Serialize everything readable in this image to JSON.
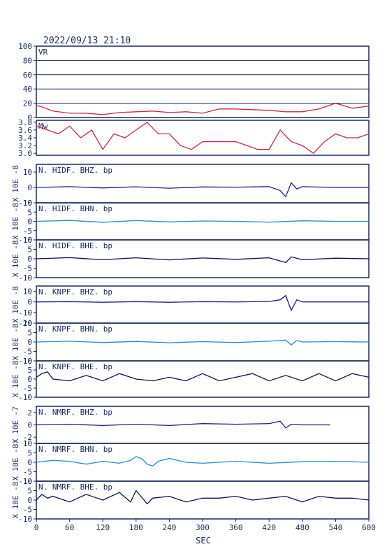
{
  "header": {
    "title": "2022/09/13 21:10"
  },
  "colors": {
    "frame": "#1a2a5a",
    "vr_line": "#d02050",
    "mw_line": "#d02050",
    "bhz": "#1c1c8c",
    "bhn": "#2a8ad0",
    "bhe": "#10104a",
    "grid": "#1a2a5a"
  },
  "xaxis": {
    "label": "SEC",
    "ticks": [
      "0",
      "60",
      "120",
      "180",
      "240",
      "300",
      "360",
      "420",
      "480",
      "540",
      "600"
    ]
  },
  "chart_data": [
    {
      "type": "line",
      "title": "VR",
      "ylim": [
        0,
        100
      ],
      "yticks": [
        "100",
        "80",
        "60",
        "40",
        "20",
        "0"
      ],
      "grid": true,
      "series": [
        {
          "x": [
            0,
            10,
            20,
            30,
            60,
            90,
            120,
            150,
            180,
            210,
            240,
            270,
            300,
            330,
            360,
            390,
            420,
            450,
            480,
            510,
            540,
            570,
            600
          ],
          "values": [
            17,
            15,
            12,
            9,
            6,
            6,
            4,
            7,
            8,
            9,
            7,
            8,
            6,
            12,
            12,
            11,
            10,
            8,
            8,
            12,
            20,
            13,
            16
          ]
        }
      ]
    },
    {
      "type": "line",
      "title": "Mw",
      "ylim": [
        2.95,
        3.85
      ],
      "yticks": [
        "3.8",
        "3.6",
        "3.4",
        "3.2",
        "3.0"
      ],
      "series": [
        {
          "x": [
            0,
            20,
            40,
            60,
            80,
            100,
            120,
            140,
            160,
            180,
            200,
            220,
            240,
            260,
            280,
            300,
            320,
            340,
            360,
            380,
            400,
            420,
            440,
            460,
            480,
            500,
            520,
            540,
            560,
            580,
            600
          ],
          "values": [
            3.7,
            3.6,
            3.5,
            3.7,
            3.4,
            3.6,
            3.1,
            3.5,
            3.4,
            3.6,
            3.8,
            3.5,
            3.5,
            3.2,
            3.1,
            3.3,
            3.3,
            3.3,
            3.3,
            3.2,
            3.1,
            3.1,
            3.6,
            3.3,
            3.2,
            3.0,
            3.3,
            3.5,
            3.4,
            3.4,
            3.5
          ]
        }
      ]
    },
    {
      "type": "line",
      "title": "N. HIDF. BHZ. bp",
      "ylabel": "X 10E -8",
      "ylim": [
        -10,
        15
      ],
      "yticks": [
        "10",
        "0",
        "-10"
      ],
      "series": [
        {
          "x": [
            0,
            60,
            120,
            180,
            240,
            300,
            360,
            420,
            440,
            450,
            460,
            470,
            480,
            540,
            600
          ],
          "values": [
            0,
            0.5,
            -0.3,
            0.4,
            -0.5,
            0.3,
            0.2,
            0.5,
            -2,
            -6,
            3,
            -1,
            0.5,
            0,
            0
          ]
        }
      ]
    },
    {
      "type": "line",
      "title": "N. HIDF. BHN. bp",
      "ylabel": "X 10E -8",
      "ylim": [
        -10,
        10
      ],
      "yticks": [
        "10",
        "5",
        "0",
        "-5",
        "-10"
      ],
      "series": [
        {
          "x": [
            0,
            60,
            120,
            180,
            240,
            300,
            360,
            420,
            480,
            540,
            600
          ],
          "values": [
            0,
            0.5,
            -0.5,
            0.4,
            -0.3,
            0.2,
            0,
            -0.4,
            0.3,
            0,
            0
          ]
        }
      ]
    },
    {
      "type": "line",
      "title": "N. HIDF. BHE. bp",
      "ylabel": "X 10E -8",
      "ylim": [
        -10,
        10
      ],
      "yticks": [
        "10",
        "5",
        "0",
        "-5",
        "-10"
      ],
      "series": [
        {
          "x": [
            0,
            60,
            120,
            180,
            240,
            300,
            360,
            420,
            450,
            460,
            480,
            540,
            600
          ],
          "values": [
            0,
            0.6,
            -0.5,
            0.5,
            -0.6,
            0.4,
            -0.3,
            0.5,
            -2,
            1,
            -0.5,
            0.3,
            0
          ]
        }
      ]
    },
    {
      "type": "line",
      "title": "N. KNPF. BHZ. bp",
      "ylabel": "X 10E -8",
      "ylim": [
        -20,
        15
      ],
      "yticks": [
        "10",
        "0",
        "-10",
        "-20"
      ],
      "series": [
        {
          "x": [
            0,
            60,
            120,
            180,
            240,
            300,
            360,
            420,
            440,
            450,
            460,
            470,
            480,
            540,
            600
          ],
          "values": [
            0,
            0.3,
            -0.3,
            0.3,
            -0.3,
            0.3,
            0,
            0.4,
            2,
            6,
            -8,
            2,
            0,
            0,
            0
          ]
        }
      ]
    },
    {
      "type": "line",
      "title": "N. KNPF. BHN. bp",
      "ylabel": "X 10E -8",
      "ylim": [
        -10,
        10
      ],
      "yticks": [
        "10",
        "5",
        "0",
        "-5",
        "-10"
      ],
      "series": [
        {
          "x": [
            0,
            60,
            120,
            180,
            240,
            300,
            360,
            420,
            450,
            460,
            470,
            480,
            540,
            600
          ],
          "values": [
            0,
            0.4,
            -0.3,
            0.3,
            -0.4,
            0.2,
            -0.3,
            0.4,
            1,
            -1.5,
            0.8,
            0,
            0.2,
            0
          ]
        }
      ]
    },
    {
      "type": "line",
      "title": "N. KNPF. BHE. bp",
      "ylabel": "X 10E -8",
      "ylim": [
        -10,
        10
      ],
      "yticks": [
        "10",
        "5",
        "0",
        "-5",
        "-10"
      ],
      "series": [
        {
          "x": [
            0,
            10,
            20,
            30,
            60,
            90,
            120,
            150,
            180,
            210,
            240,
            270,
            300,
            330,
            360,
            390,
            420,
            450,
            480,
            510,
            540,
            570,
            600
          ],
          "values": [
            1,
            3,
            4,
            0,
            -1,
            2,
            -1,
            3,
            0,
            -1,
            1,
            -1,
            3,
            -1,
            1,
            3,
            -1,
            2,
            -1,
            3,
            -1,
            3,
            1
          ]
        }
      ]
    },
    {
      "type": "line",
      "title": "N. NMRF. BHZ. bp",
      "ylabel": "X 10E -7",
      "ylim": [
        -3,
        3
      ],
      "yticks": [
        "2",
        "0",
        "-2"
      ],
      "series": [
        {
          "x": [
            0,
            60,
            120,
            180,
            240,
            300,
            360,
            420,
            440,
            450,
            460,
            480,
            530
          ],
          "values": [
            0,
            0.1,
            -0.1,
            0.1,
            -0.1,
            0.2,
            0.1,
            0.2,
            0.6,
            -0.5,
            0.1,
            0,
            0
          ]
        }
      ]
    },
    {
      "type": "line",
      "title": "N. NMRF. BHN. bp",
      "ylabel": "X 10E -8",
      "ylim": [
        -10,
        10
      ],
      "yticks": [
        "10",
        "5",
        "0",
        "-5",
        "-10"
      ],
      "series": [
        {
          "x": [
            0,
            30,
            60,
            90,
            120,
            150,
            170,
            180,
            190,
            200,
            210,
            220,
            240,
            270,
            300,
            360,
            420,
            480,
            540,
            600
          ],
          "values": [
            0,
            1,
            0.5,
            -1,
            0.5,
            -0.5,
            1,
            3,
            2,
            -1,
            -2,
            0.5,
            2,
            0,
            -0.5,
            0.5,
            -0.5,
            0.3,
            0.5,
            0
          ]
        }
      ]
    },
    {
      "type": "line",
      "title": "N. NMRF. BHE. bp",
      "ylabel": "X 10E -8",
      "ylim": [
        -10,
        10
      ],
      "yticks": [
        "10",
        "5",
        "0",
        "-5",
        "-10"
      ],
      "series": [
        {
          "x": [
            0,
            10,
            20,
            30,
            60,
            90,
            120,
            150,
            170,
            180,
            200,
            210,
            240,
            270,
            300,
            330,
            360,
            390,
            420,
            450,
            480,
            510,
            540,
            570,
            600
          ],
          "values": [
            0,
            3,
            1,
            2,
            -1,
            3,
            0,
            4,
            -1,
            5,
            -2,
            1,
            2,
            -1,
            1,
            1,
            2,
            0,
            1,
            2,
            -1,
            2,
            1,
            1,
            0
          ]
        }
      ]
    }
  ]
}
